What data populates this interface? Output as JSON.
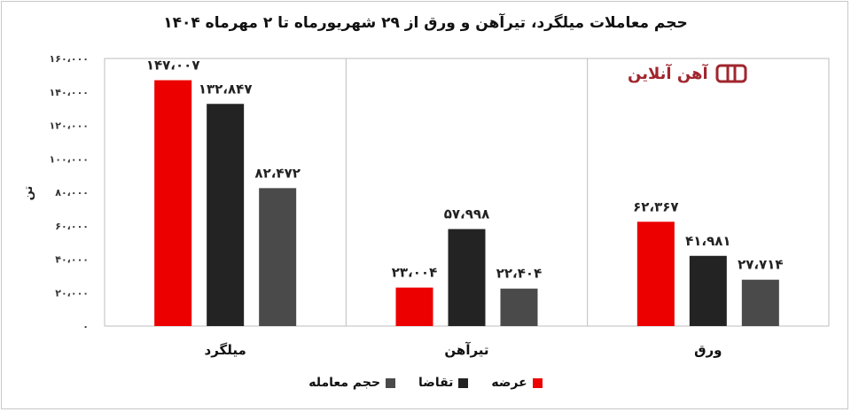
{
  "chart_data": {
    "type": "bar",
    "title": "حجم معاملات میلگرد، تیرآهن و ورق از ۲۹ شهریورماه تا ۲ مهرماه ۱۴۰۴",
    "ylabel": "تن",
    "ylim": [
      0,
      160000
    ],
    "yticks": [
      0,
      20000,
      40000,
      60000,
      80000,
      100000,
      120000,
      140000,
      160000
    ],
    "ytick_labels": [
      "۰",
      "۲۰،۰۰۰",
      "۴۰،۰۰۰",
      "۶۰،۰۰۰",
      "۸۰،۰۰۰",
      "۱۰۰،۰۰۰",
      "۱۲۰،۰۰۰",
      "۱۴۰،۰۰۰",
      "۱۶۰،۰۰۰"
    ],
    "categories": [
      "میلگرد",
      "تیرآهن",
      "ورق"
    ],
    "series": [
      {
        "name": "عرضه",
        "color": "#ec0000",
        "values": [
          147007,
          23004,
          62367
        ],
        "labels": [
          "۱۴۷،۰۰۷",
          "۲۳،۰۰۴",
          "۶۲،۳۶۷"
        ]
      },
      {
        "name": "تقاضا",
        "color": "#232323",
        "values": [
          132847,
          57998,
          41981
        ],
        "labels": [
          "۱۳۲،۸۴۷",
          "۵۷،۹۹۸",
          "۴۱،۹۸۱"
        ]
      },
      {
        "name": "حجم معامله",
        "color": "#4a4a4a",
        "values": [
          82472,
          22404,
          27714
        ],
        "labels": [
          "۸۲،۴۷۲",
          "۲۲،۴۰۴",
          "۲۷،۷۱۴"
        ]
      }
    ],
    "grid": false,
    "legend_position": "bottom"
  },
  "logo": {
    "text": "آهن آنلاین",
    "color": "#a0262e"
  }
}
